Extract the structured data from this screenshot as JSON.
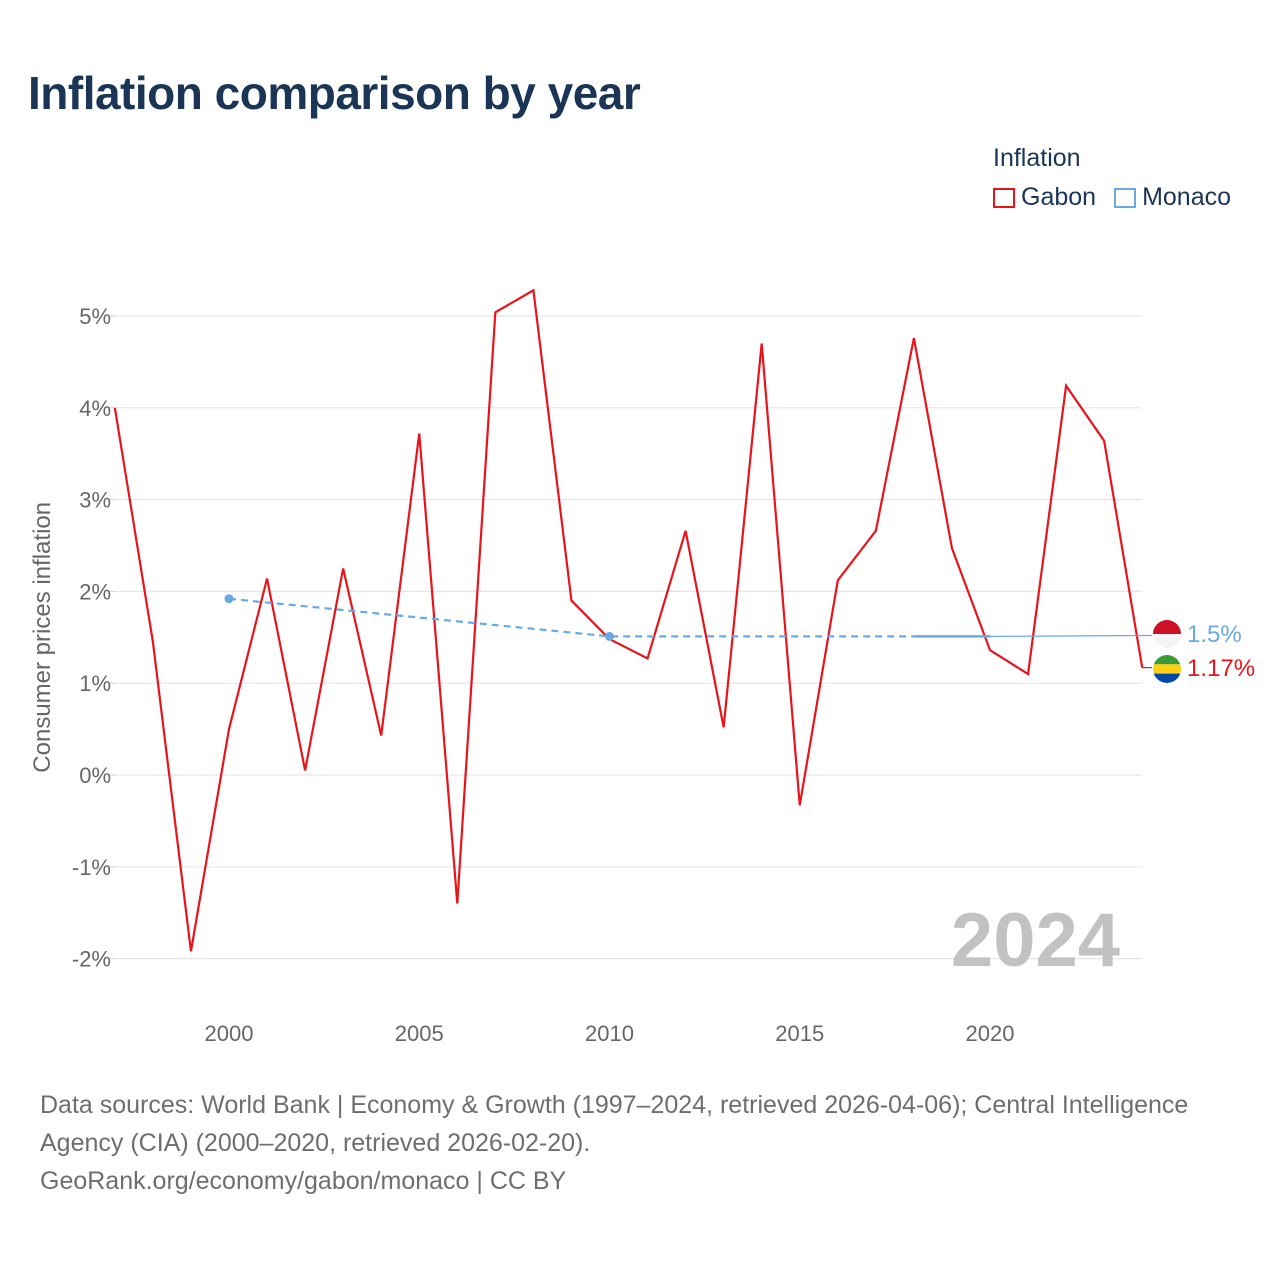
{
  "title": "Inflation comparison by year",
  "legend": {
    "title": "Inflation",
    "items": [
      {
        "label": "Gabon",
        "color": "#e8141b"
      },
      {
        "label": "Monaco",
        "color": "#6aaae4"
      }
    ]
  },
  "footer": {
    "sources": "Data sources: World Bank | Economy & Growth (1997–2024, retrieved 2026-04-06); Central Intelligence Agency (CIA) (2000–2020, retrieved 2026-02-20).",
    "site": "GeoRank.org/economy/gabon/monaco | CC BY"
  },
  "chart_data": {
    "type": "line",
    "title": "Inflation comparison by year",
    "xlabel": "",
    "ylabel": "Consumer prices inflation",
    "year_label": "2024",
    "xlim": [
      1997,
      2024
    ],
    "ylim": [
      -2,
      5
    ],
    "x_ticks": [
      2000,
      2005,
      2010,
      2015,
      2020
    ],
    "y_ticks": [
      -2,
      -1,
      0,
      1,
      2,
      3,
      4,
      5
    ],
    "y_tick_labels": [
      "-2%",
      "-1%",
      "0%",
      "1%",
      "2%",
      "3%",
      "4%",
      "5%"
    ],
    "grid": true,
    "series": [
      {
        "name": "Gabon",
        "color": "#e8141b",
        "end_label": "1.17%",
        "x": [
          1997,
          1998,
          1999,
          2000,
          2001,
          2002,
          2003,
          2004,
          2005,
          2006,
          2007,
          2008,
          2009,
          2010,
          2011,
          2012,
          2013,
          2014,
          2015,
          2016,
          2017,
          2018,
          2019,
          2020,
          2021,
          2022,
          2023,
          2024
        ],
        "values": [
          4.0,
          1.45,
          -1.92,
          0.5,
          2.14,
          0.05,
          2.25,
          0.43,
          3.72,
          -1.4,
          5.04,
          5.28,
          1.9,
          1.48,
          1.27,
          2.66,
          0.52,
          4.7,
          -0.33,
          2.12,
          2.66,
          4.76,
          2.47,
          1.36,
          1.1,
          4.24,
          3.64,
          1.17
        ]
      },
      {
        "name": "Monaco",
        "color": "#6aaae4",
        "end_label": "1.5%",
        "x": [
          2000,
          2010,
          2018,
          2020,
          2024
        ],
        "values": [
          1.92,
          1.51,
          1.51,
          1.51,
          1.52
        ],
        "markers": [
          2000,
          2010
        ],
        "dashed_until": 2018,
        "extrapolated_from": 2020
      }
    ]
  }
}
